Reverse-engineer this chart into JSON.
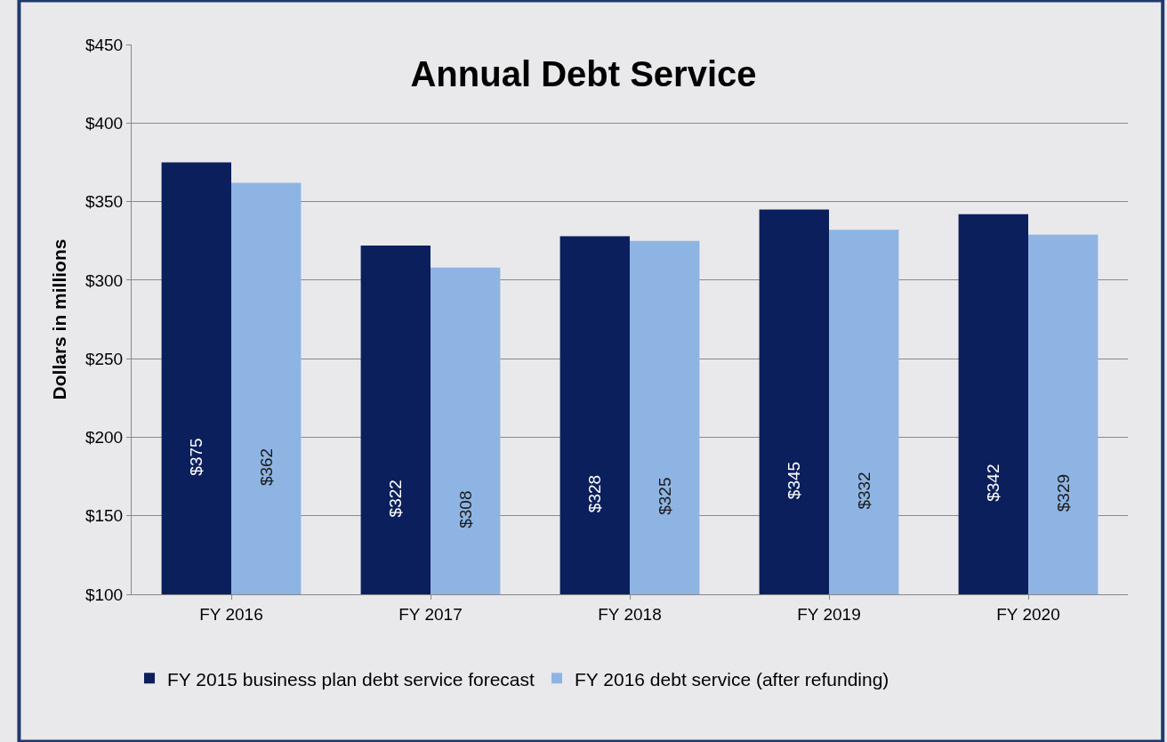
{
  "chart_data": {
    "type": "bar",
    "title": "Annual Debt Service",
    "ylabel": "Dollars in millions",
    "categories": [
      "FY 2016",
      "FY 2017",
      "FY 2018",
      "FY 2019",
      "FY 2020"
    ],
    "series": [
      {
        "name": "FY 2015 business plan debt service forecast",
        "color": "#0b1f5c",
        "values": [
          375,
          322,
          328,
          345,
          342
        ],
        "value_labels": [
          "$375",
          "$322",
          "$328",
          "$345",
          "$342"
        ]
      },
      {
        "name": "FY 2016 debt service (after refunding)",
        "color": "#8eb4e3",
        "values": [
          362,
          308,
          325,
          332,
          329
        ],
        "value_labels": [
          "$362",
          "$308",
          "$325",
          "$332",
          "$329"
        ]
      }
    ],
    "ylim": [
      100,
      450
    ],
    "yticks": [
      {
        "value": 100,
        "label": "$100"
      },
      {
        "value": 150,
        "label": "$150"
      },
      {
        "value": 200,
        "label": "$200"
      },
      {
        "value": 250,
        "label": "$250"
      },
      {
        "value": 300,
        "label": "$300"
      },
      {
        "value": 350,
        "label": "$350"
      },
      {
        "value": 400,
        "label": "$400"
      },
      {
        "value": 450,
        "label": "$450"
      }
    ],
    "grid": "y",
    "legend": "bottom"
  }
}
